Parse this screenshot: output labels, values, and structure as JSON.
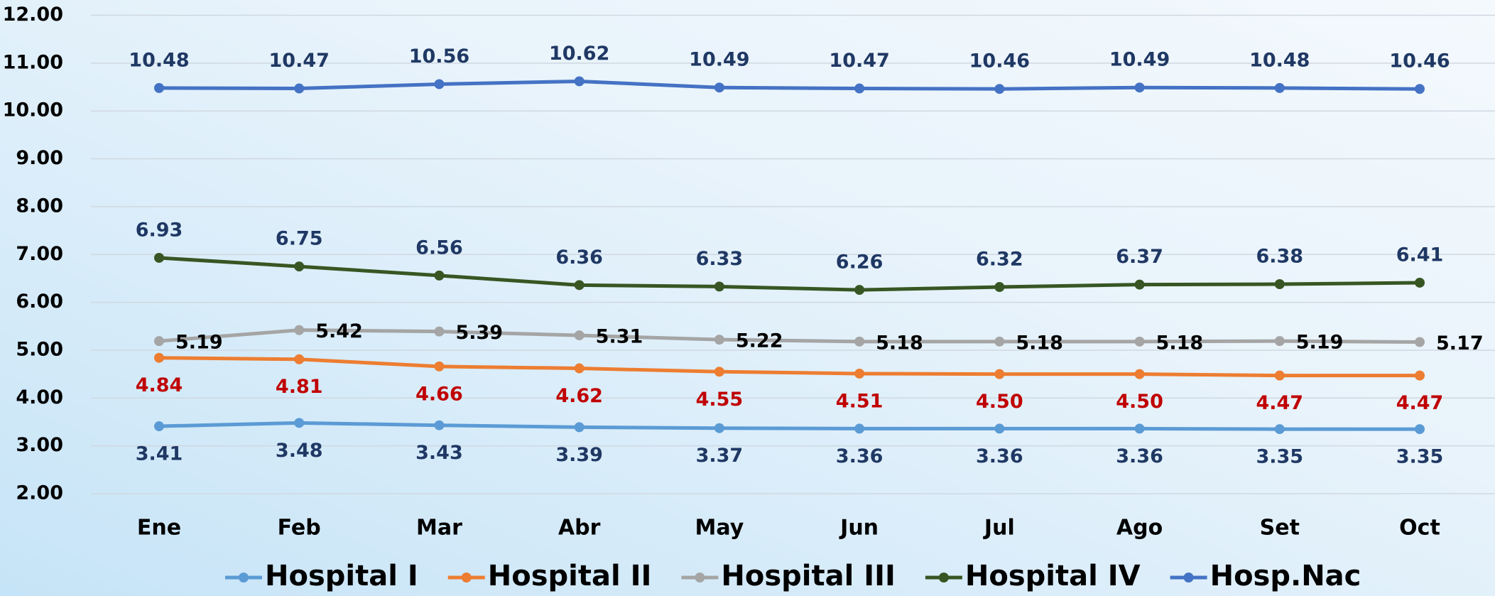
{
  "chart_data": {
    "type": "line",
    "categories": [
      "Ene",
      "Feb",
      "Mar",
      "Abr",
      "May",
      "Jun",
      "Jul",
      "Ago",
      "Set",
      "Oct"
    ],
    "series": [
      {
        "name": "Hospital I",
        "color": "#5b9bd5",
        "label_color": "#1f3864",
        "values": [
          3.41,
          3.48,
          3.43,
          3.39,
          3.37,
          3.36,
          3.36,
          3.36,
          3.35,
          3.35
        ],
        "value_labels": [
          "3.41",
          "3.48",
          "3.43",
          "3.39",
          "3.37",
          "3.36",
          "3.36",
          "3.36",
          "3.35",
          "3.35"
        ]
      },
      {
        "name": "Hospital II",
        "color": "#ed7d31",
        "label_color": "#c00000",
        "values": [
          4.84,
          4.81,
          4.66,
          4.62,
          4.55,
          4.51,
          4.5,
          4.5,
          4.47,
          4.47
        ],
        "value_labels": [
          "4.84",
          "4.81",
          "4.66",
          "4.62",
          "4.55",
          "4.51",
          "4.50",
          "4.50",
          "4.47",
          "4.47"
        ]
      },
      {
        "name": "Hospital III",
        "color": "#a5a5a5",
        "label_color": "#000000",
        "values": [
          5.19,
          5.42,
          5.39,
          5.31,
          5.22,
          5.18,
          5.18,
          5.18,
          5.19,
          5.17
        ],
        "value_labels": [
          "5.19",
          "5.42",
          "5.39",
          "5.31",
          "5.22",
          "5.18",
          "5.18",
          "5.18",
          "5.19",
          "5.17"
        ]
      },
      {
        "name": "Hospital IV",
        "color": "#375623",
        "label_color": "#1f3864",
        "values": [
          6.93,
          6.75,
          6.56,
          6.36,
          6.33,
          6.26,
          6.32,
          6.37,
          6.38,
          6.41
        ],
        "value_labels": [
          "6.93",
          "6.75",
          "6.56",
          "6.36",
          "6.33",
          "6.26",
          "6.32",
          "6.37",
          "6.38",
          "6.41"
        ]
      },
      {
        "name": "Hosp.Nac",
        "color": "#4472c4",
        "label_color": "#1f3864",
        "values": [
          10.48,
          10.47,
          10.56,
          10.62,
          10.49,
          10.47,
          10.46,
          10.49,
          10.48,
          10.46
        ],
        "value_labels": [
          "10.48",
          "10.47",
          "10.56",
          "10.62",
          "10.49",
          "10.47",
          "10.46",
          "10.49",
          "10.48",
          "10.46"
        ]
      }
    ],
    "ylim": [
      2,
      12
    ],
    "yticks": [
      {
        "value": 2,
        "label": "2.00"
      },
      {
        "value": 3,
        "label": "3.00"
      },
      {
        "value": 4,
        "label": "4.00"
      },
      {
        "value": 5,
        "label": "5.00"
      },
      {
        "value": 6,
        "label": "6.00"
      },
      {
        "value": 7,
        "label": "7.00"
      },
      {
        "value": 8,
        "label": "8.00"
      },
      {
        "value": 9,
        "label": "9.00"
      },
      {
        "value": 10,
        "label": "10.00"
      },
      {
        "value": 11,
        "label": "11.00"
      },
      {
        "value": 12,
        "label": "12.00"
      }
    ],
    "grid": true,
    "legend": "bottom"
  }
}
